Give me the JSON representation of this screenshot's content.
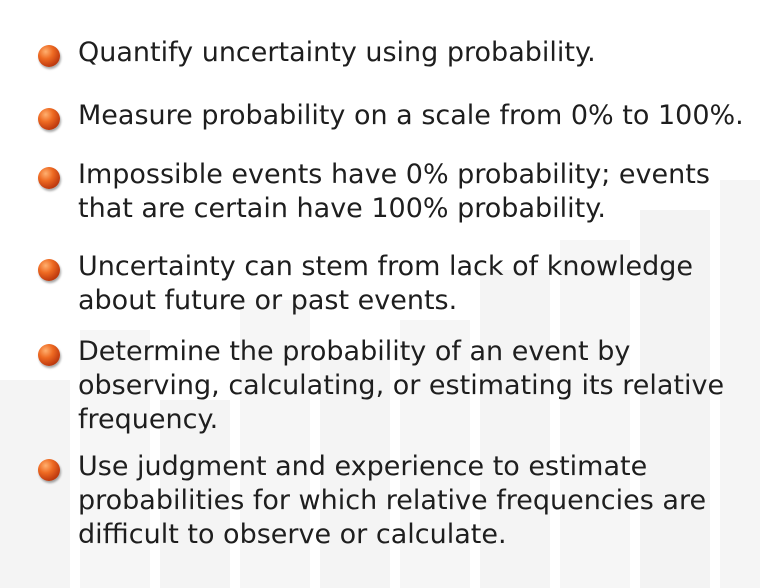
{
  "slide": {
    "bullets": [
      {
        "text": "Quantify uncertainty using probability."
      },
      {
        "text": "Measure probability on a scale from 0% to 100%."
      },
      {
        "text": "Impossible events have 0% probability; events\nthat are certain have 100% probability."
      },
      {
        "text": "Uncertainty can stem from lack of knowledge\nabout future or past events."
      },
      {
        "text": "Determine the probability of an event by\nobserving, calculating, or estimating its relative\nfrequency."
      },
      {
        "text": "Use judgment and experience to estimate\nprobabilities for which relative frequencies are\ndifficult to observe or calculate."
      }
    ],
    "colors": {
      "bullet": "#e0561a",
      "text": "#1e1e1e",
      "background_bars": "#f2f2f2"
    }
  }
}
